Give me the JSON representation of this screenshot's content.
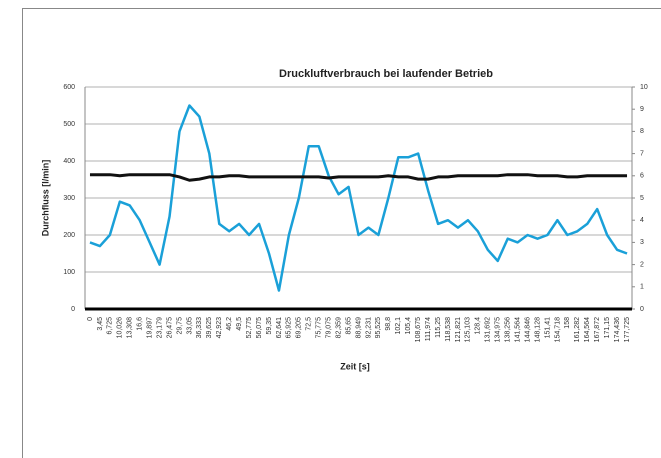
{
  "chart_data": {
    "type": "line",
    "title": "Druckluftverbrauch  bei  laufender Betrieb",
    "x_label": "Zeit [s]",
    "y_label": "Durchfluss  [l/min]",
    "categories": [
      "0",
      "3,45",
      "6,725",
      "10,026",
      "13,308",
      "16,6",
      "19,897",
      "23,179",
      "26,475",
      "29,75",
      "33,05",
      "36,333",
      "39,625",
      "42,923",
      "46,2",
      "49,5",
      "52,775",
      "56,075",
      "59,35",
      "62,641",
      "65,925",
      "69,205",
      "72,5",
      "75,775",
      "79,075",
      "82,359",
      "85,65",
      "88,949",
      "92,231",
      "95,525",
      "98,8",
      "102,1",
      "105,4",
      "108,675",
      "111,974",
      "115,25",
      "118,538",
      "121,821",
      "125,103",
      "128,4",
      "131,692",
      "134,975",
      "138,256",
      "141,564",
      "144,846",
      "148,128",
      "151,41",
      "154,718",
      "158",
      "161,282",
      "164,564",
      "167,872",
      "171,15",
      "174,436",
      "177,725"
    ],
    "series": [
      {
        "color": "#1aa0d8",
        "values": [
          180,
          170,
          200,
          290,
          280,
          240,
          180,
          120,
          250,
          480,
          550,
          520,
          420,
          230,
          210,
          230,
          200,
          230,
          150,
          50,
          200,
          300,
          440,
          440,
          360,
          310,
          330,
          200,
          220,
          200,
          300,
          410,
          410,
          420,
          320,
          230,
          240,
          220,
          240,
          210,
          160,
          130,
          190,
          180,
          200,
          190,
          200,
          240,
          200,
          210,
          230,
          270,
          200,
          160,
          150
        ]
      },
      {
        "color": "#111111",
        "axis": "y2",
        "values": [
          6.05,
          6.05,
          6.05,
          6.0,
          6.05,
          6.05,
          6.05,
          6.05,
          6.05,
          5.95,
          5.8,
          5.85,
          5.95,
          5.95,
          6.0,
          6.0,
          5.95,
          5.95,
          5.95,
          5.95,
          5.95,
          5.95,
          5.95,
          5.95,
          5.9,
          5.95,
          5.95,
          5.95,
          5.95,
          5.95,
          6.0,
          5.95,
          5.95,
          5.85,
          5.85,
          5.95,
          5.95,
          6.0,
          6.0,
          6.0,
          6.0,
          6.0,
          6.05,
          6.05,
          6.05,
          6.0,
          6.0,
          6.0,
          5.95,
          5.95,
          6.0,
          6.0,
          6.0,
          6.0,
          6.0
        ]
      }
    ],
    "ylim": [
      0,
      600
    ],
    "yticks": [
      0,
      100,
      200,
      300,
      400,
      500,
      600
    ],
    "y2lim": [
      0,
      10
    ],
    "y2ticks": [
      0,
      1,
      2,
      3,
      4,
      5,
      6,
      7,
      8,
      9,
      10
    ],
    "grid": true
  }
}
